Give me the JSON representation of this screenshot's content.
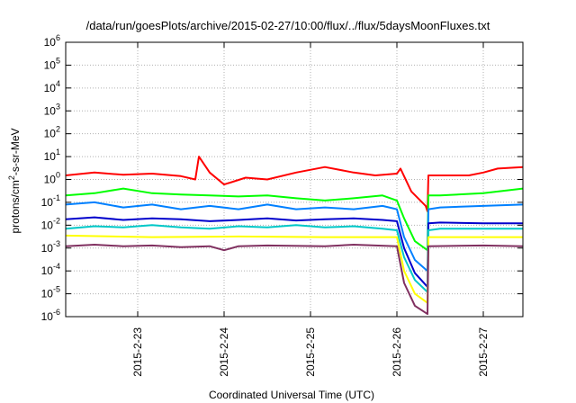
{
  "chart_data": {
    "type": "line",
    "title": "/data/run/goesPlots/archive/2015-02-27/10:00/flux/../flux/5daysMoonFluxes.txt",
    "xlabel": "Coordinated Universal Time (UTC)",
    "ylabel": {
      "prefix": "protons/cm",
      "sup": "2",
      "suffix": "-s-sr-MeV"
    },
    "x_range": [
      "2015-02-22 04:00",
      "2015-02-27 11:00"
    ],
    "y_scale": "log",
    "ylim": [
      1e-06,
      1000000.0
    ],
    "y_ticks": [
      {
        "base": "10",
        "exp": "-6"
      },
      {
        "base": "10",
        "exp": "-5"
      },
      {
        "base": "10",
        "exp": "-4"
      },
      {
        "base": "10",
        "exp": "-3"
      },
      {
        "base": "10",
        "exp": "-2"
      },
      {
        "base": "10",
        "exp": "-1"
      },
      {
        "base": "10",
        "exp": "0"
      },
      {
        "base": "10",
        "exp": "1"
      },
      {
        "base": "10",
        "exp": "2"
      },
      {
        "base": "10",
        "exp": "3"
      },
      {
        "base": "10",
        "exp": "4"
      },
      {
        "base": "10",
        "exp": "5"
      },
      {
        "base": "10",
        "exp": "6"
      }
    ],
    "x_ticks": [
      "2015-2-23",
      "2015-2-24",
      "2015-2-25",
      "2015-2-26",
      "2015-2-27"
    ],
    "grid": true,
    "series": [
      {
        "color": "#ff0000",
        "points": [
          [
            "2015-02-22 04:00",
            1.5
          ],
          [
            "2015-02-22 12:00",
            2.0
          ],
          [
            "2015-02-22 20:00",
            1.6
          ],
          [
            "2015-02-23 04:00",
            1.8
          ],
          [
            "2015-02-23 12:00",
            1.4
          ],
          [
            "2015-02-23 16:00",
            1.0
          ],
          [
            "2015-02-23 17:00",
            10
          ],
          [
            "2015-02-23 20:00",
            2.0
          ],
          [
            "2015-02-24 00:00",
            0.6
          ],
          [
            "2015-02-24 06:00",
            1.2
          ],
          [
            "2015-02-24 12:00",
            1.0
          ],
          [
            "2015-02-24 20:00",
            2.0
          ],
          [
            "2015-02-25 04:00",
            3.5
          ],
          [
            "2015-02-25 12:00",
            2.0
          ],
          [
            "2015-02-25 18:00",
            1.5
          ],
          [
            "2015-02-26 00:00",
            1.8
          ],
          [
            "2015-02-26 01:00",
            3.0
          ],
          [
            "2015-02-26 04:00",
            0.3
          ],
          [
            "2015-02-26 08:00",
            0.07
          ],
          [
            "2015-02-26 08:30",
            0.04
          ],
          [
            "2015-02-26 08:45",
            1.5
          ],
          [
            "2015-02-26 12:00",
            1.5
          ],
          [
            "2015-02-26 20:00",
            1.5
          ],
          [
            "2015-02-27 00:00",
            2.0
          ],
          [
            "2015-02-27 04:00",
            3.0
          ],
          [
            "2015-02-27 11:00",
            3.5
          ]
        ]
      },
      {
        "color": "#00ff00",
        "points": [
          [
            "2015-02-22 04:00",
            0.2
          ],
          [
            "2015-02-22 12:00",
            0.25
          ],
          [
            "2015-02-22 20:00",
            0.4
          ],
          [
            "2015-02-23 04:00",
            0.25
          ],
          [
            "2015-02-23 12:00",
            0.22
          ],
          [
            "2015-02-23 20:00",
            0.2
          ],
          [
            "2015-02-24 04:00",
            0.18
          ],
          [
            "2015-02-24 12:00",
            0.2
          ],
          [
            "2015-02-24 20:00",
            0.15
          ],
          [
            "2015-02-25 04:00",
            0.12
          ],
          [
            "2015-02-25 12:00",
            0.15
          ],
          [
            "2015-02-25 20:00",
            0.2
          ],
          [
            "2015-02-26 00:00",
            0.12
          ],
          [
            "2015-02-26 02:00",
            0.02
          ],
          [
            "2015-02-26 05:00",
            0.002
          ],
          [
            "2015-02-26 08:30",
            0.0008
          ],
          [
            "2015-02-26 08:45",
            0.2
          ],
          [
            "2015-02-26 12:00",
            0.2
          ],
          [
            "2015-02-27 00:00",
            0.25
          ],
          [
            "2015-02-27 11:00",
            0.4
          ]
        ]
      },
      {
        "color": "#0080ff",
        "points": [
          [
            "2015-02-22 04:00",
            0.08
          ],
          [
            "2015-02-22 12:00",
            0.1
          ],
          [
            "2015-02-22 20:00",
            0.06
          ],
          [
            "2015-02-23 04:00",
            0.08
          ],
          [
            "2015-02-23 12:00",
            0.05
          ],
          [
            "2015-02-23 20:00",
            0.07
          ],
          [
            "2015-02-24 04:00",
            0.05
          ],
          [
            "2015-02-24 12:00",
            0.08
          ],
          [
            "2015-02-24 20:00",
            0.05
          ],
          [
            "2015-02-25 04:00",
            0.06
          ],
          [
            "2015-02-25 12:00",
            0.05
          ],
          [
            "2015-02-25 20:00",
            0.07
          ],
          [
            "2015-02-26 00:00",
            0.05
          ],
          [
            "2015-02-26 02:00",
            0.003
          ],
          [
            "2015-02-26 05:00",
            0.0003
          ],
          [
            "2015-02-26 08:30",
            0.0001
          ],
          [
            "2015-02-26 08:45",
            0.05
          ],
          [
            "2015-02-26 12:00",
            0.06
          ],
          [
            "2015-02-27 00:00",
            0.07
          ],
          [
            "2015-02-27 11:00",
            0.08
          ]
        ]
      },
      {
        "color": "#0000cc",
        "points": [
          [
            "2015-02-22 04:00",
            0.018
          ],
          [
            "2015-02-22 12:00",
            0.022
          ],
          [
            "2015-02-22 20:00",
            0.017
          ],
          [
            "2015-02-23 04:00",
            0.02
          ],
          [
            "2015-02-23 12:00",
            0.018
          ],
          [
            "2015-02-23 20:00",
            0.015
          ],
          [
            "2015-02-24 04:00",
            0.017
          ],
          [
            "2015-02-24 12:00",
            0.02
          ],
          [
            "2015-02-24 20:00",
            0.016
          ],
          [
            "2015-02-25 04:00",
            0.018
          ],
          [
            "2015-02-25 12:00",
            0.02
          ],
          [
            "2015-02-25 20:00",
            0.017
          ],
          [
            "2015-02-26 00:00",
            0.015
          ],
          [
            "2015-02-26 02:00",
            0.001
          ],
          [
            "2015-02-26 05:00",
            8e-05
          ],
          [
            "2015-02-26 08:30",
            2e-05
          ],
          [
            "2015-02-26 08:45",
            0.012
          ],
          [
            "2015-02-26 12:00",
            0.013
          ],
          [
            "2015-02-27 00:00",
            0.012
          ],
          [
            "2015-02-27 11:00",
            0.012
          ]
        ]
      },
      {
        "color": "#00c8c8",
        "points": [
          [
            "2015-02-22 04:00",
            0.007
          ],
          [
            "2015-02-22 12:00",
            0.009
          ],
          [
            "2015-02-22 20:00",
            0.008
          ],
          [
            "2015-02-23 04:00",
            0.01
          ],
          [
            "2015-02-23 12:00",
            0.008
          ],
          [
            "2015-02-23 20:00",
            0.007
          ],
          [
            "2015-02-24 04:00",
            0.009
          ],
          [
            "2015-02-24 12:00",
            0.008
          ],
          [
            "2015-02-24 20:00",
            0.01
          ],
          [
            "2015-02-25 04:00",
            0.008
          ],
          [
            "2015-02-25 12:00",
            0.009
          ],
          [
            "2015-02-25 20:00",
            0.007
          ],
          [
            "2015-02-26 00:00",
            0.006
          ],
          [
            "2015-02-26 02:00",
            0.0004
          ],
          [
            "2015-02-26 05:00",
            4e-05
          ],
          [
            "2015-02-26 08:30",
            1.2e-05
          ],
          [
            "2015-02-26 08:45",
            0.006
          ],
          [
            "2015-02-26 12:00",
            0.007
          ],
          [
            "2015-02-27 00:00",
            0.007
          ],
          [
            "2015-02-27 11:00",
            0.007
          ]
        ]
      },
      {
        "color": "#ffff00",
        "points": [
          [
            "2015-02-22 04:00",
            0.0035
          ],
          [
            "2015-02-23 04:00",
            0.003
          ],
          [
            "2015-02-24 04:00",
            0.0032
          ],
          [
            "2015-02-25 04:00",
            0.003
          ],
          [
            "2015-02-26 00:00",
            0.003
          ],
          [
            "2015-02-26 02:00",
            0.0001
          ],
          [
            "2015-02-26 05:00",
            1e-05
          ],
          [
            "2015-02-26 08:30",
            4e-06
          ],
          [
            "2015-02-26 08:45",
            0.003
          ],
          [
            "2015-02-27 00:00",
            0.003
          ],
          [
            "2015-02-27 11:00",
            0.003
          ]
        ]
      },
      {
        "color": "#803060",
        "points": [
          [
            "2015-02-22 04:00",
            0.0012
          ],
          [
            "2015-02-22 12:00",
            0.0014
          ],
          [
            "2015-02-22 20:00",
            0.0012
          ],
          [
            "2015-02-23 04:00",
            0.0013
          ],
          [
            "2015-02-23 12:00",
            0.0011
          ],
          [
            "2015-02-23 20:00",
            0.0012
          ],
          [
            "2015-02-24 00:00",
            0.0008
          ],
          [
            "2015-02-24 04:00",
            0.0012
          ],
          [
            "2015-02-24 12:00",
            0.0013
          ],
          [
            "2015-02-25 04:00",
            0.0012
          ],
          [
            "2015-02-25 12:00",
            0.0014
          ],
          [
            "2015-02-26 00:00",
            0.0012
          ],
          [
            "2015-02-26 02:00",
            3e-05
          ],
          [
            "2015-02-26 05:00",
            3e-06
          ],
          [
            "2015-02-26 08:30",
            1.3e-06
          ],
          [
            "2015-02-26 08:45",
            0.0012
          ],
          [
            "2015-02-27 00:00",
            0.0013
          ],
          [
            "2015-02-27 11:00",
            0.0012
          ]
        ]
      }
    ]
  }
}
